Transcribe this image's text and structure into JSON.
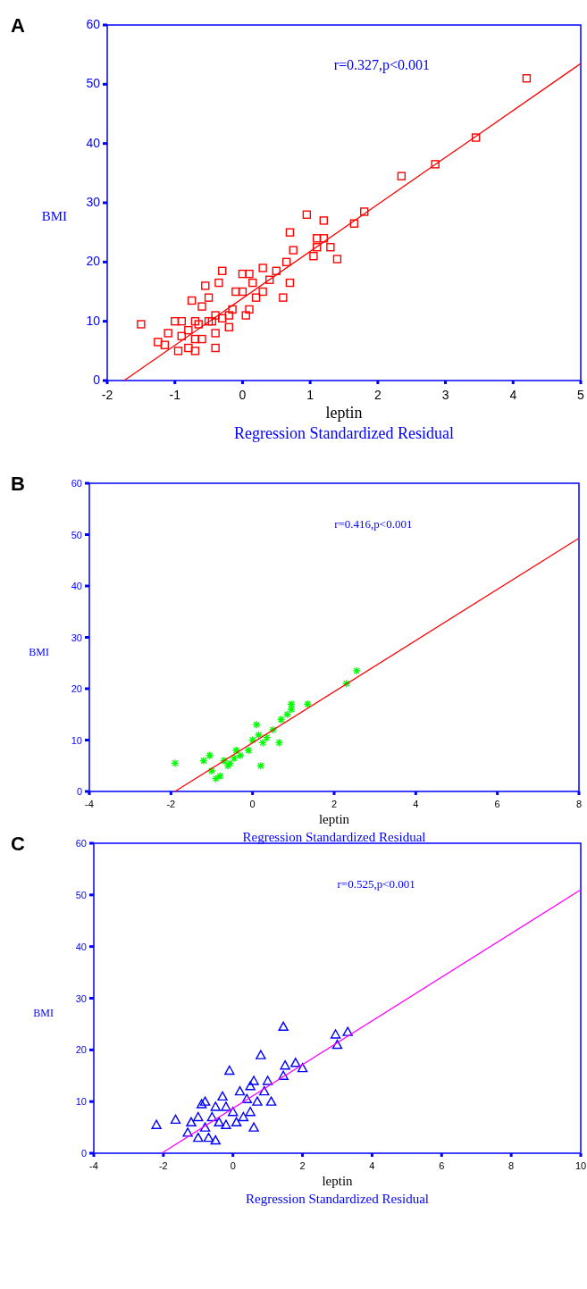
{
  "chart_data": [
    {
      "type": "scatter",
      "title": "A",
      "xlabel": "leptin",
      "ylabel": "BMI",
      "annotations": [
        "r=0.327,p<0.001",
        "Regression Standardized Residual"
      ],
      "grid": false,
      "xlim": [
        -2,
        5
      ],
      "xticks": [
        -2,
        -1,
        0,
        1,
        2,
        3,
        4,
        5
      ],
      "ylim": [
        0,
        60
      ],
      "yticks": [
        0,
        10,
        20,
        30,
        40,
        50,
        60
      ],
      "series": [
        {
          "color": "#ff0000",
          "marker": "square",
          "x": [
            4.2,
            3.45,
            2.85,
            2.35,
            1.8,
            1.65,
            1.4,
            1.3,
            1.2,
            1.2,
            1.1,
            1.1,
            1.05,
            0.95,
            0.75,
            0.7,
            0.7,
            0.65,
            0.6,
            0.5,
            0.4,
            0.3,
            0.3,
            0.2,
            0.15,
            0.1,
            0.1,
            0.0,
            0.0,
            -0.1,
            -0.15,
            -0.2,
            -0.3,
            -0.35,
            -0.4,
            -0.4,
            -0.45,
            -0.4,
            -0.5,
            -0.55,
            -0.6,
            -0.65,
            -0.7,
            -0.7,
            -0.75,
            -0.8,
            -0.8,
            -0.9,
            -0.9,
            -0.95,
            -1.0,
            -1.1,
            -1.15,
            -1.25,
            -1.5,
            -0.6,
            -0.3,
            -0.2,
            0.05,
            -0.7,
            -0.5
          ],
          "values": [
            51,
            41,
            36.5,
            34.5,
            28.5,
            26.5,
            20.5,
            22.5,
            27,
            24,
            24,
            22.5,
            21,
            28,
            22,
            25,
            16.5,
            20,
            14,
            18.5,
            17,
            19,
            15,
            14,
            16.5,
            18,
            12,
            18,
            15,
            15,
            12,
            11,
            18.5,
            16.5,
            8,
            11,
            10,
            5.5,
            14,
            16,
            12.5,
            9.5,
            10,
            7,
            13.5,
            8.5,
            5.5,
            10,
            7.5,
            5,
            10,
            8,
            6,
            6.5,
            9.5,
            7,
            10.5,
            9,
            11,
            5,
            10
          ]
        },
        {
          "type": "line",
          "color": "#ff0000",
          "marker": "none",
          "x": [
            -1.75,
            5
          ],
          "values": [
            0,
            53.5
          ]
        }
      ]
    },
    {
      "type": "scatter",
      "title": "B",
      "xlabel": "leptin",
      "ylabel": "BMI",
      "annotations": [
        "r=0.416,p<0.001",
        "Regression Standardized Residual"
      ],
      "grid": false,
      "xlim": [
        -4,
        8
      ],
      "xticks": [
        -4,
        -2,
        0,
        2,
        4,
        6,
        8
      ],
      "ylim": [
        0,
        60
      ],
      "yticks": [
        0,
        10,
        20,
        30,
        40,
        50,
        60
      ],
      "series": [
        {
          "color": "#00ff00",
          "marker": "cross",
          "x": [
            2.55,
            2.3,
            1.35,
            0.95,
            0.95,
            0.85,
            0.7,
            0.65,
            0.5,
            0.35,
            0.25,
            0.2,
            0.1,
            0.0,
            -0.1,
            -0.3,
            -0.45,
            -0.55,
            -0.6,
            -0.7,
            -0.8,
            -0.9,
            -1.0,
            -1.05,
            -1.2,
            -1.9,
            -0.4,
            0.15
          ],
          "values": [
            23.5,
            21,
            17,
            17,
            16,
            15,
            14,
            9.5,
            12,
            10.5,
            9.5,
            5,
            13,
            10,
            8,
            7,
            6.5,
            5.5,
            5,
            6,
            3,
            2.5,
            4,
            7,
            6,
            5.5,
            8,
            11
          ]
        },
        {
          "type": "line",
          "color": "#ff0000",
          "marker": "none",
          "x": [
            -1.9,
            8
          ],
          "values": [
            0,
            49.3
          ]
        }
      ]
    },
    {
      "type": "scatter",
      "title": "C",
      "xlabel": "leptin",
      "ylabel": "BMI",
      "annotations": [
        "r=0.525,p<0.001",
        "Regression Standardized Residual"
      ],
      "grid": false,
      "xlim": [
        -4,
        10
      ],
      "xticks": [
        -4,
        -2,
        0,
        2,
        4,
        6,
        8,
        10
      ],
      "ylim": [
        0,
        60
      ],
      "yticks": [
        0,
        10,
        20,
        30,
        40,
        50,
        60
      ],
      "series": [
        {
          "color": "#0000ff",
          "marker": "triangle",
          "x": [
            3.3,
            2.95,
            3.0,
            1.45,
            2.0,
            1.8,
            1.5,
            1.45,
            0.8,
            1.0,
            0.6,
            0.9,
            0.5,
            -0.1,
            0.2,
            0.4,
            0.7,
            1.1,
            -0.3,
            -0.2,
            0,
            -0.5,
            -0.8,
            -0.9,
            -0.6,
            -0.4,
            -0.2,
            0.1,
            0.3,
            0.6,
            -1.0,
            -1.2,
            -1.0,
            -0.7,
            -0.5,
            -1.3,
            -1.65,
            -2.2,
            -0.8,
            0.5
          ],
          "values": [
            23.5,
            23,
            21,
            24.5,
            16.5,
            17.5,
            17,
            15,
            19,
            14,
            14,
            12,
            13,
            16,
            12,
            10.5,
            10,
            10,
            11,
            9,
            8,
            9,
            10,
            9.5,
            7,
            6,
            5.5,
            6,
            7,
            5,
            7,
            6,
            3,
            3,
            2.5,
            4,
            6.5,
            5.5,
            5,
            8
          ]
        },
        {
          "type": "line",
          "color": "#ff00ff",
          "marker": "none",
          "x": [
            -2.05,
            10
          ],
          "values": [
            0,
            51
          ]
        }
      ]
    }
  ]
}
